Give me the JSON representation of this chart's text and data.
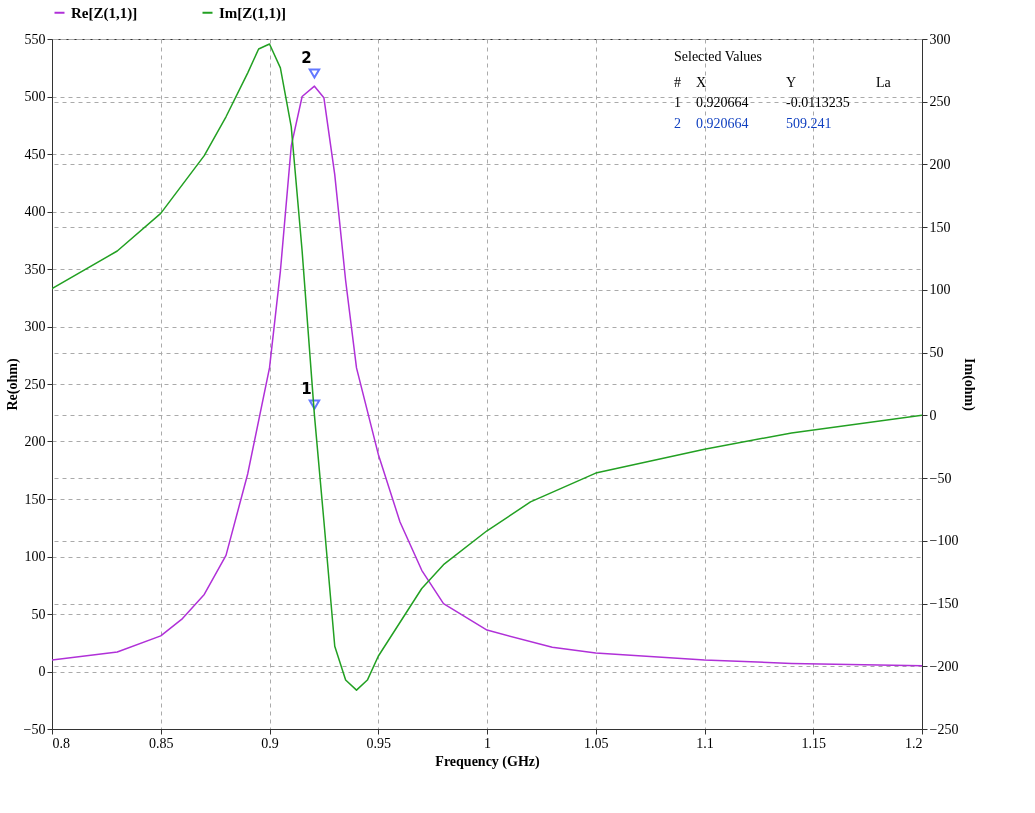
{
  "chart_data": {
    "type": "line",
    "xlabel": "Frequency (GHz)",
    "ylabel": "Re(ohm)",
    "y2label": "Im(ohm)",
    "xlim": [
      0.8,
      1.2
    ],
    "xticks": [
      0.8,
      0.85,
      0.9,
      0.95,
      1,
      1.05,
      1.1,
      1.15,
      1.2
    ],
    "ylim": [
      -50,
      550
    ],
    "yticks": [
      -50,
      0,
      50,
      100,
      150,
      200,
      250,
      300,
      350,
      400,
      450,
      500,
      550
    ],
    "y2lim": [
      -250,
      300
    ],
    "y2ticks": [
      -250,
      -200,
      -150,
      -100,
      -50,
      0,
      50,
      100,
      150,
      200,
      250,
      300
    ],
    "grid": true,
    "legend": "top left",
    "line_style": "solid",
    "series": [
      {
        "name": "Re[Z(1,1)]",
        "color": "#b030d8",
        "x": [
          0.8,
          0.83,
          0.85,
          0.86,
          0.87,
          0.88,
          0.89,
          0.9,
          0.905,
          0.91,
          0.915,
          0.920664,
          0.925,
          0.93,
          0.935,
          0.94,
          0.95,
          0.96,
          0.97,
          0.98,
          1.0,
          1.03,
          1.05,
          1.1,
          1.14,
          1.2
        ],
        "values": [
          10,
          17,
          31,
          46,
          67,
          101,
          172,
          264,
          348,
          457,
          500,
          509,
          499,
          432,
          340,
          264,
          189,
          130,
          88,
          59,
          36,
          21,
          16,
          10,
          7,
          5
        ]
      },
      {
        "name": "Im[Z(1,1)]",
        "color": "#22a022",
        "axis": "y2",
        "x": [
          0.8,
          0.83,
          0.85,
          0.87,
          0.88,
          0.89,
          0.895,
          0.9,
          0.905,
          0.91,
          0.915,
          0.920664,
          0.925,
          0.93,
          0.935,
          0.94,
          0.945,
          0.95,
          0.97,
          0.98,
          1.0,
          1.02,
          1.05,
          1.1,
          1.14,
          1.2
        ],
        "values": [
          101,
          131,
          161,
          207,
          238,
          273,
          292,
          296,
          277,
          230,
          131,
          0,
          -84,
          -184,
          -211,
          -219,
          -211,
          -192,
          -138,
          -119,
          -92,
          -69,
          -46,
          -27,
          -14,
          0
        ]
      }
    ],
    "annotations": [
      {
        "text": "1",
        "x": 0.920664,
        "y": 232
      },
      {
        "text": "2",
        "x": 0.920664,
        "y": 520
      },
      "Selected Values",
      "#",
      "X",
      "Y",
      "La",
      "1",
      "0.920664",
      "-0.0113235",
      "2",
      "0.920664",
      "509.241"
    ]
  }
}
